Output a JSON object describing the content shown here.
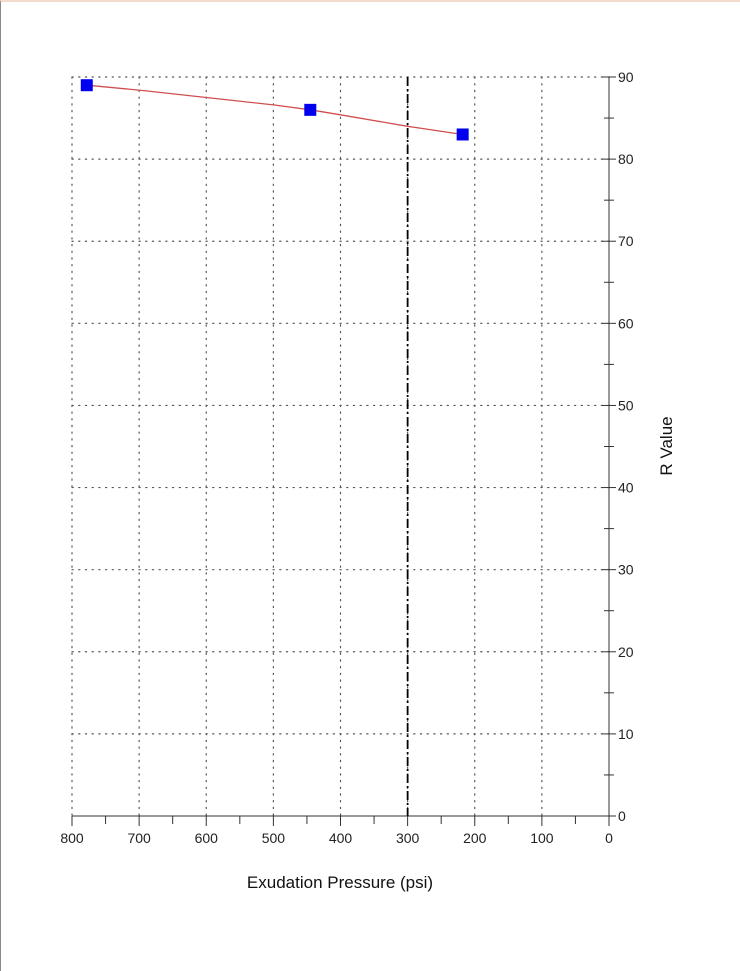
{
  "chart_data": {
    "type": "scatter",
    "title": "",
    "xlabel": "Exudation Pressure (psi)",
    "ylabel": "R Value",
    "xlim": [
      800,
      0
    ],
    "ylim": [
      0,
      90
    ],
    "x_reversed": true,
    "x_ticks": [
      800,
      700,
      600,
      500,
      400,
      300,
      200,
      100,
      0
    ],
    "x_tick_labels": [
      "800",
      "700",
      "600",
      "500",
      "400",
      "300",
      "200",
      "100",
      "0"
    ],
    "y_ticks": [
      0,
      10,
      20,
      30,
      40,
      50,
      60,
      70,
      80,
      90
    ],
    "y_tick_labels": [
      "0",
      "10",
      "20",
      "30",
      "40",
      "50",
      "60",
      "70",
      "80",
      "90"
    ],
    "y_axis_position": "right",
    "grid": "dotted",
    "series": [
      {
        "x": [
          778,
          445,
          218
        ],
        "y": [
          89,
          86,
          83
        ],
        "marker": "square",
        "color": "#0000ee"
      }
    ],
    "fit_curve": {
      "x": [
        778,
        700,
        600,
        500,
        445,
        400,
        300,
        218
      ],
      "y": [
        89,
        88.4,
        87.5,
        86.6,
        86,
        85.4,
        84,
        83
      ],
      "color": "#d05050"
    },
    "reference_line": {
      "x": 300,
      "style": "dash-dot",
      "color": "#000000"
    }
  }
}
